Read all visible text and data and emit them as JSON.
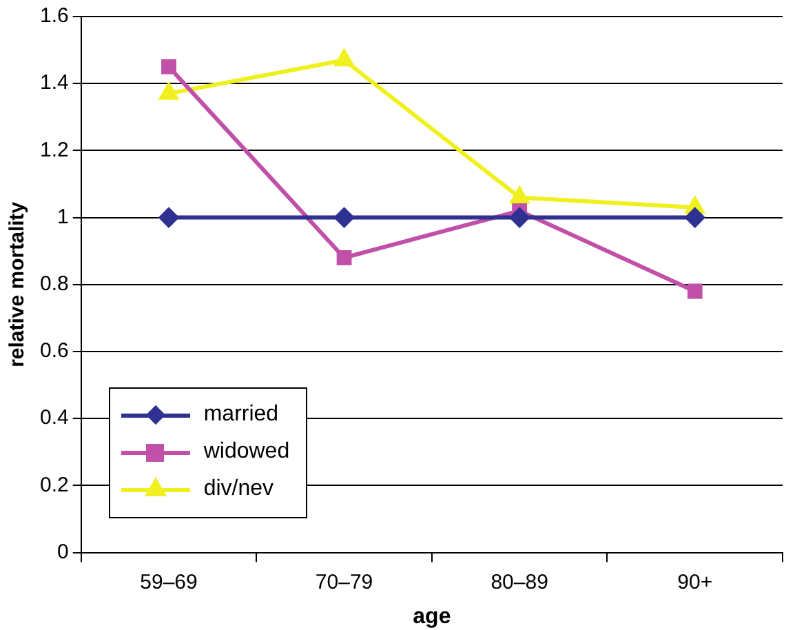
{
  "chart_data": {
    "type": "line",
    "xlabel": "age",
    "ylabel": "relative mortality",
    "categories": [
      "59–69",
      "70–79",
      "80–89",
      "90+"
    ],
    "series": [
      {
        "name": "married",
        "color": "#2e3192",
        "marker": "diamond",
        "values": [
          1,
          1,
          1,
          1
        ]
      },
      {
        "name": "widowed",
        "color": "#c050a8",
        "marker": "square",
        "values": [
          1.45,
          0.88,
          1.02,
          0.78
        ]
      },
      {
        "name": "div/nev",
        "color": "#f0f020",
        "marker": "triangle",
        "values": [
          1.37,
          1.47,
          1.06,
          1.03
        ]
      }
    ],
    "ylim": [
      0,
      1.6
    ],
    "yticks": [
      0,
      0.2,
      0.4,
      0.6,
      0.8,
      1,
      1.2,
      1.4,
      1.6
    ],
    "grid": "y",
    "legend": "bottom left"
  }
}
